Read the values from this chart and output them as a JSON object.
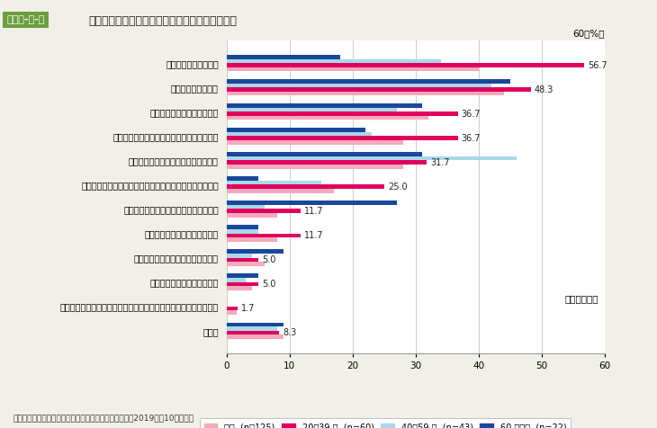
{
  "title": "朝食を食べるために必要なこと（女性・年代別）",
  "label_tag": "図表１-８-２",
  "categories": [
    "朝早く起きられること",
    "朝、食欲があること",
    "朝食を食べる習慣があること",
    "自分で朝食を用意する手間がかからないこと",
    "自分で朝食を用意する時間があること",
    "夜遅くまで残業するなど労働時間や環境に無理がないこと",
    "朝食を食べるメリットを知っていること",
    "家に朝食が用意されていること",
    "夕食や夜食を食べすぎていないこと",
    "ダイエットの必要がないこと",
    "外食やコンビニ等で手軽に朝食をとることができる環境があること",
    "その他"
  ],
  "series": [
    [
      40.0,
      44.0,
      32.0,
      28.0,
      28.0,
      17.0,
      8.0,
      8.0,
      6.0,
      4.0,
      1.6,
      9.0
    ],
    [
      56.7,
      48.3,
      36.7,
      36.7,
      31.7,
      25.0,
      11.7,
      11.7,
      5.0,
      5.0,
      1.7,
      8.3
    ],
    [
      34.0,
      42.0,
      27.0,
      23.0,
      46.0,
      15.0,
      6.0,
      5.0,
      4.0,
      3.0,
      0.0,
      8.0
    ],
    [
      18.0,
      45.0,
      31.0,
      22.0,
      31.0,
      5.0,
      27.0,
      5.0,
      9.0,
      5.0,
      0.0,
      9.0
    ]
  ],
  "colors": [
    "#F4AABB",
    "#E0005E",
    "#AAD8E8",
    "#1A479C"
  ],
  "legend_labels": [
    "全体  (n＝125)",
    "20～39 歳  (n=60)",
    "40～59 歳  (n=43)",
    "60 歳以上  (n=22)"
  ],
  "value_labels": [
    56.7,
    48.3,
    36.7,
    36.7,
    31.7,
    25.0,
    11.7,
    11.7,
    5.0,
    5.0,
    1.7,
    8.3
  ],
  "xlim_max": 60,
  "xticks": [
    0,
    10,
    20,
    30,
    40,
    50,
    60
  ],
  "footnote": "資料：農林水産省「食育に関する意識調査」（令和元（2019）年10月実施）",
  "note_right": "（複数回答）",
  "bg_color": "#f0f0e8",
  "header_green": "#6B9E3E",
  "header_text_color": "#222222"
}
